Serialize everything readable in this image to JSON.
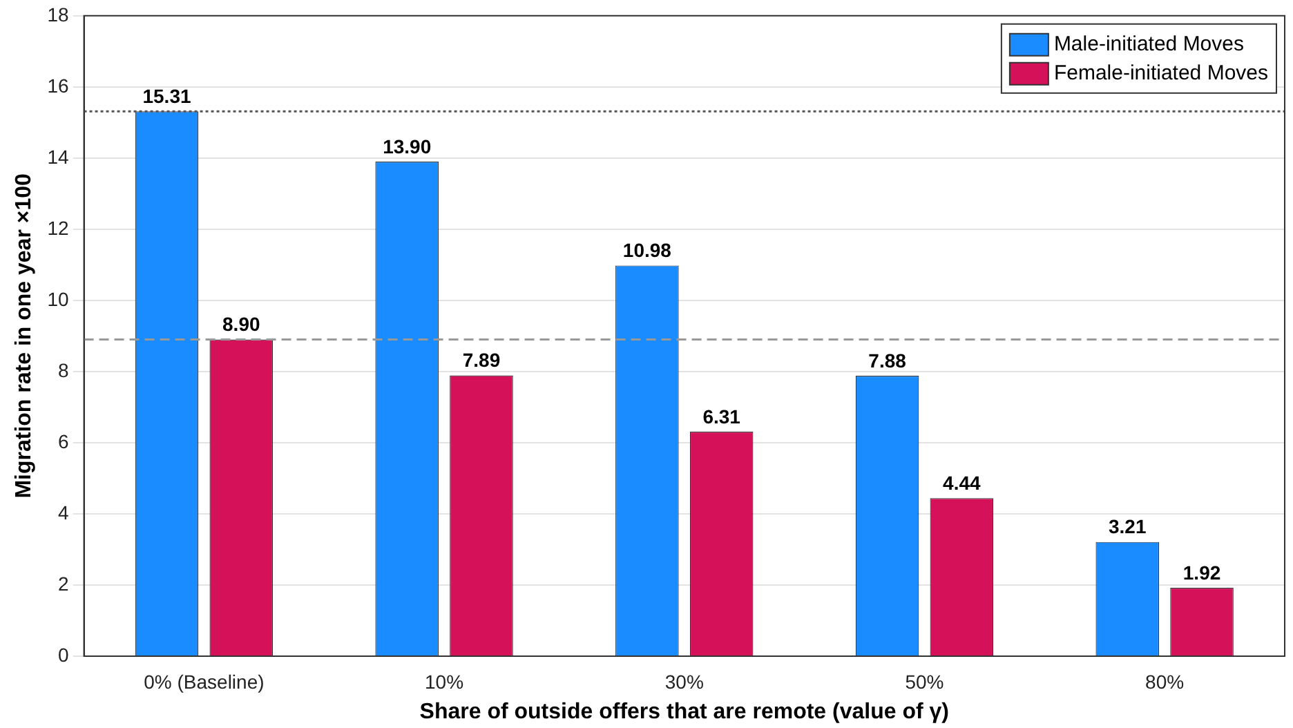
{
  "chart_data": {
    "type": "bar",
    "xlabel": "Share of outside offers that are remote (value of γ)",
    "ylabel": "Migration rate in one year ×100",
    "categories": [
      "0% (Baseline)",
      "10%",
      "30%",
      "50%",
      "80%"
    ],
    "series": [
      {
        "name": "Male-initiated Moves",
        "color": "#1a8cff",
        "values": [
          15.31,
          13.9,
          10.98,
          7.88,
          3.21
        ],
        "value_labels": [
          "15.31",
          "13.90",
          "10.98",
          "7.88",
          "3.21"
        ]
      },
      {
        "name": "Female-initiated Moves",
        "color": "#d41159",
        "values": [
          8.9,
          7.89,
          6.31,
          4.44,
          1.92
        ],
        "value_labels": [
          "8.90",
          "7.89",
          "6.31",
          "4.44",
          "1.92"
        ]
      }
    ],
    "ylim": [
      0,
      18
    ],
    "yticks": [
      0,
      2,
      4,
      6,
      8,
      10,
      12,
      14,
      16,
      18
    ],
    "grid": "y",
    "legend": "top right",
    "ref_lines": [
      {
        "axis": "y",
        "value": 15.31,
        "line_style": "dotted",
        "color": "#555555"
      },
      {
        "axis": "y",
        "value": 8.9,
        "line_style": "dashed",
        "color": "#999999"
      }
    ]
  }
}
